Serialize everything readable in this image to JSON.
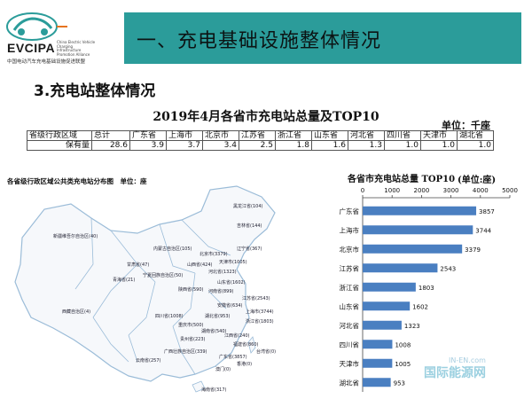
{
  "logo": {
    "name": "EVCIPA",
    "tiny": "China Electric Vehicle Charging Infrastructure Promotion Alliance",
    "sub": "中国电动汽车充电基础设施促进联盟"
  },
  "banner_title": "一、充电基础设施整体情况",
  "section_title": "3.充电站整体情况",
  "table": {
    "title": "2019年4月各省市充电站总量及TOP10",
    "unit": "单位：千座",
    "header": [
      "省级行政区域",
      "总计",
      "广东省",
      "上海市",
      "北京市",
      "江苏省",
      "浙江省",
      "山东省",
      "河北省",
      "四川省",
      "天津市",
      "湖北省"
    ],
    "row": [
      "保有量",
      "28.6",
      "3.9",
      "3.7",
      "3.4",
      "2.5",
      "1.8",
      "1.6",
      "1.3",
      "1.0",
      "1.0",
      "1.0"
    ]
  },
  "map": {
    "title": "各省级行政区域公共类充电站分布图　单位：座",
    "labels": [
      "黑龙江省(104)",
      "吉林省(144)",
      "辽宁省(367)",
      "内蒙古自治区(105)",
      "北京市(3379)",
      "天津市(1005)",
      "新疆维吾尔自治区(40)",
      "甘肃省(47)",
      "山西省(424)",
      "河北省(1323)",
      "宁夏回族自治区(50)",
      "青海省(21)",
      "陕西省(590)",
      "山东省(1602)",
      "河南省(899)",
      "江苏省(2543)",
      "安徽省(634)",
      "上海市(3744)",
      "西藏自治区(4)",
      "四川省(1008)",
      "湖北省(953)",
      "浙江省(1803)",
      "重庆市(500)",
      "湖南省(540)",
      "江西省(240)",
      "贵州省(223)",
      "福建省(860)",
      "云南省(257)",
      "广西壮族自治区(339)",
      "广东省(3857)",
      "澳门(0)",
      "香港(0)",
      "台湾省(0)",
      "海南省(317)"
    ]
  },
  "chart_data": {
    "type": "bar",
    "orientation": "horizontal",
    "title": "各省市充电站总量 TOP10",
    "unit": "(单位:座)",
    "categories": [
      "广东省",
      "上海市",
      "北京市",
      "江苏省",
      "浙江省",
      "山东省",
      "河北省",
      "四川省",
      "天津市",
      "湖北省"
    ],
    "values": [
      3857,
      3744,
      3379,
      2543,
      1803,
      1602,
      1323,
      1008,
      1005,
      953
    ],
    "xlim": [
      0,
      5000
    ],
    "xticks": [
      0,
      1000,
      2000,
      3000,
      4000,
      5000
    ],
    "bar_color": "#4a7fc1",
    "axis_position": "top",
    "grid": false
  },
  "watermark": {
    "text": "国际能源网",
    "sub": "IN-EN.com"
  },
  "colors": {
    "banner": "#2b9c9a",
    "bar": "#4a7fc1",
    "map_line": "#9bbcd8"
  }
}
